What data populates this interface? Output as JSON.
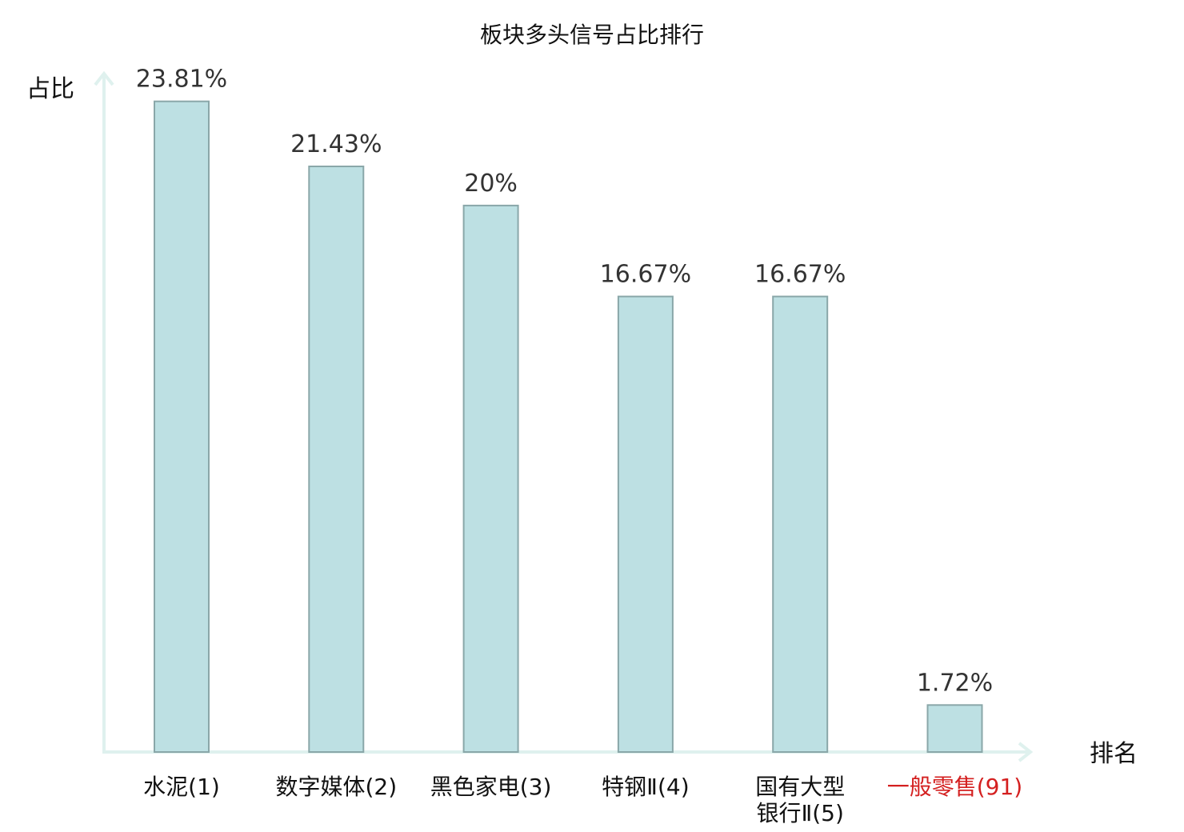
{
  "chart_data": {
    "type": "bar",
    "title": "板块多头信号占比排行",
    "xlabel": "排名",
    "ylabel": "占比",
    "ylim": [
      0,
      25.5
    ],
    "grid": false,
    "categories": [
      {
        "lines": [
          "水泥(1)"
        ],
        "highlight": false
      },
      {
        "lines": [
          "数字媒体(2)"
        ],
        "highlight": false
      },
      {
        "lines": [
          "黑色家电(3)"
        ],
        "highlight": false
      },
      {
        "lines": [
          "特钢Ⅱ(4)"
        ],
        "highlight": false
      },
      {
        "lines": [
          "国有大型",
          "银行Ⅱ(5)"
        ],
        "highlight": false
      },
      {
        "lines": [
          "一般零售(91)"
        ],
        "highlight": true
      }
    ],
    "values": [
      23.81,
      21.43,
      20,
      16.67,
      16.67,
      1.72
    ],
    "value_labels": [
      "23.81%",
      "21.43%",
      "20%",
      "16.67%",
      "16.67%",
      "1.72%"
    ],
    "colors": {
      "bar_fill": "#bde0e3",
      "bar_stroke": "#8aa7a9",
      "axis": "#dff1ee",
      "highlight_text": "#d42020"
    }
  }
}
